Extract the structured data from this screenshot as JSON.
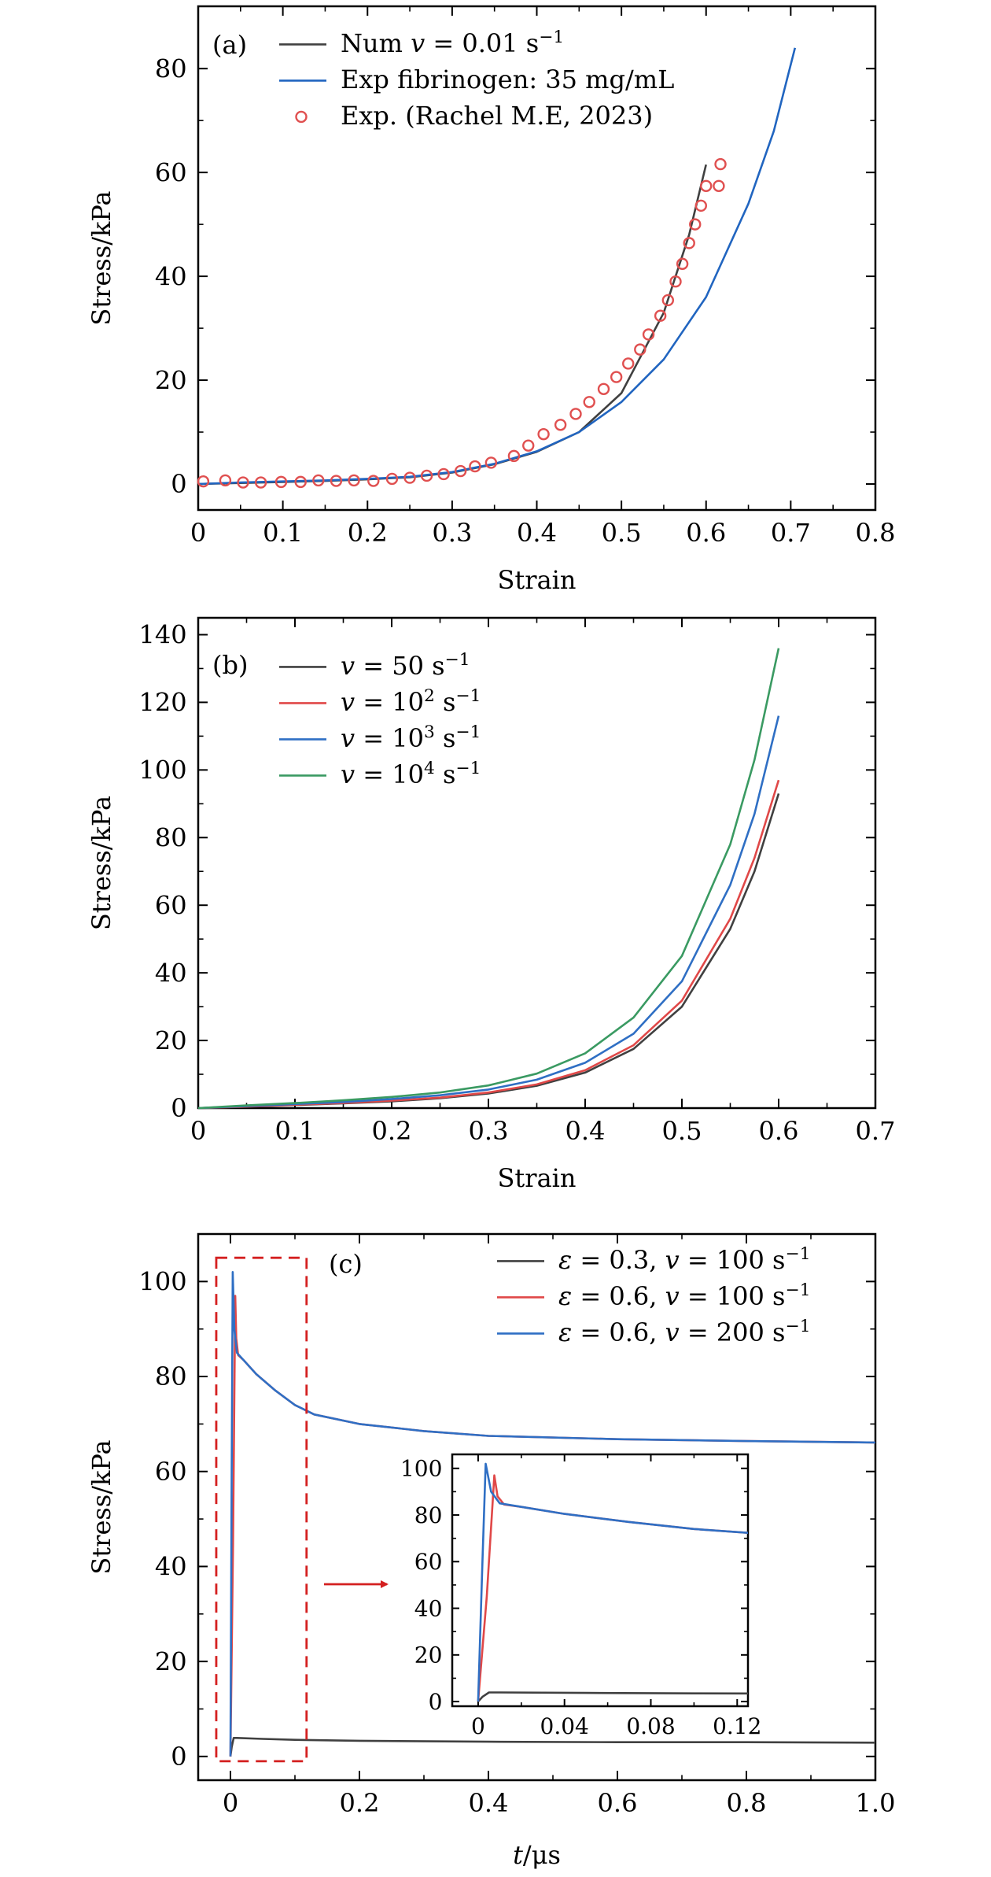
{
  "chart_data": [
    {
      "type": "line",
      "panel_label": "(a)",
      "xlabel": "Strain",
      "ylabel": "Stress/kPa",
      "xlim": [
        0,
        0.8
      ],
      "ylim": [
        -5,
        92
      ],
      "xticks": [
        0,
        0.1,
        0.2,
        0.3,
        0.4,
        0.5,
        0.6,
        0.7,
        0.8
      ],
      "xtick_labels": [
        "0",
        "0.1",
        "0.2",
        "0.3",
        "0.4",
        "0.5",
        "0.6",
        "0.7",
        "0.8"
      ],
      "yticks": [
        0,
        20,
        40,
        60,
        80
      ],
      "ytick_labels": [
        "0",
        "20",
        "40",
        "60",
        "80"
      ],
      "legend_position": "top-left",
      "series": [
        {
          "name": "Num v = 0.01 s⁻¹",
          "legend_main": "Num ",
          "legend_italic": "v",
          "legend_rest": " = 0.01 s",
          "legend_sup": "−1",
          "color": "#404040",
          "style": "line",
          "x": [
            0,
            0.05,
            0.1,
            0.15,
            0.2,
            0.25,
            0.3,
            0.35,
            0.4,
            0.45,
            0.5,
            0.55,
            0.58,
            0.6
          ],
          "values": [
            0,
            0.2,
            0.4,
            0.6,
            0.9,
            1.3,
            2.2,
            3.8,
            6.2,
            10.0,
            17.5,
            33.0,
            48.0,
            61.5
          ]
        },
        {
          "name": "Exp fibrinogen: 35 mg/mL",
          "legend_main": "Exp fibrinogen: 35 mg/mL",
          "color": "#2165c0",
          "style": "line",
          "x": [
            0,
            0.05,
            0.1,
            0.15,
            0.2,
            0.25,
            0.3,
            0.35,
            0.4,
            0.45,
            0.5,
            0.55,
            0.6,
            0.65,
            0.68,
            0.705
          ],
          "values": [
            0,
            0.3,
            0.5,
            0.7,
            1.0,
            1.4,
            2.3,
            3.9,
            6.3,
            10.0,
            15.8,
            24.0,
            36.0,
            54.0,
            68.0,
            84.0
          ]
        },
        {
          "name": "Exp. (Rachel M.E, 2023)",
          "legend_main": "Exp. (Rachel M.E, 2023)",
          "color": "#e05050",
          "style": "marker",
          "x": [
            0.006,
            0.032,
            0.053,
            0.074,
            0.098,
            0.121,
            0.142,
            0.163,
            0.184,
            0.207,
            0.229,
            0.25,
            0.27,
            0.29,
            0.31,
            0.327,
            0.346,
            0.373,
            0.39,
            0.408,
            0.428,
            0.446,
            0.462,
            0.479,
            0.494,
            0.508,
            0.522,
            0.532,
            0.546,
            0.555,
            0.564,
            0.572,
            0.58,
            0.587,
            0.594,
            0.6,
            0.615,
            0.617
          ],
          "values": [
            0.5,
            0.7,
            0.3,
            0.3,
            0.4,
            0.4,
            0.7,
            0.6,
            0.7,
            0.6,
            1.0,
            1.2,
            1.6,
            1.9,
            2.5,
            3.4,
            4.1,
            5.4,
            7.4,
            9.6,
            11.4,
            13.5,
            15.8,
            18.3,
            20.6,
            23.2,
            25.9,
            28.8,
            32.4,
            35.4,
            39.0,
            42.4,
            46.4,
            50.0,
            53.6,
            57.4,
            57.4,
            61.6
          ]
        }
      ]
    },
    {
      "type": "line",
      "panel_label": "(b)",
      "xlabel": "Strain",
      "ylabel": "Stress/kPa",
      "xlim": [
        0,
        0.7
      ],
      "ylim": [
        0,
        145
      ],
      "xticks": [
        0,
        0.1,
        0.2,
        0.3,
        0.4,
        0.5,
        0.6,
        0.7
      ],
      "xtick_labels": [
        "0",
        "0.1",
        "0.2",
        "0.3",
        "0.4",
        "0.5",
        "0.6",
        "0.7"
      ],
      "yticks": [
        0,
        20,
        40,
        60,
        80,
        100,
        120,
        140
      ],
      "ytick_labels": [
        "0",
        "20",
        "40",
        "60",
        "80",
        "100",
        "120",
        "140"
      ],
      "legend_position": "top-left",
      "series": [
        {
          "name": "v = 50 s⁻¹",
          "legend_italic": "v",
          "legend_rest": " =  50 s",
          "legend_sup": "−1",
          "color": "#404040",
          "style": "line",
          "x": [
            0,
            0.05,
            0.1,
            0.15,
            0.2,
            0.25,
            0.3,
            0.35,
            0.4,
            0.45,
            0.5,
            0.55,
            0.575,
            0.6
          ],
          "values": [
            0,
            0.4,
            0.9,
            1.4,
            2.0,
            2.9,
            4.3,
            6.6,
            10.5,
            17.5,
            30.0,
            53.0,
            70.0,
            93.0
          ]
        },
        {
          "name": "v = 10² s⁻¹",
          "legend_italic": "v",
          "legend_rest": " =  10",
          "legend_sup_a": "2",
          "legend_tail": " s",
          "legend_sup": "−1",
          "color": "#e04848",
          "style": "line",
          "x": [
            0,
            0.05,
            0.1,
            0.15,
            0.2,
            0.25,
            0.3,
            0.35,
            0.4,
            0.45,
            0.5,
            0.55,
            0.575,
            0.6
          ],
          "values": [
            0,
            0.45,
            1.0,
            1.5,
            2.2,
            3.1,
            4.6,
            7.0,
            11.2,
            18.6,
            31.8,
            56.0,
            74.0,
            97.0
          ]
        },
        {
          "name": "v = 10³ s⁻¹",
          "legend_italic": "v",
          "legend_rest": " =  10",
          "legend_sup_a": "3",
          "legend_tail": " s",
          "legend_sup": "−1",
          "color": "#2f6fc4",
          "style": "line",
          "x": [
            0,
            0.05,
            0.1,
            0.15,
            0.2,
            0.25,
            0.3,
            0.35,
            0.4,
            0.45,
            0.5,
            0.55,
            0.575,
            0.6
          ],
          "values": [
            0,
            0.6,
            1.2,
            1.8,
            2.7,
            3.8,
            5.5,
            8.4,
            13.4,
            22.0,
            37.5,
            66.0,
            87.0,
            116.0
          ]
        },
        {
          "name": "v = 10⁴ s⁻¹",
          "legend_italic": "v",
          "legend_rest": " =  10",
          "legend_sup_a": "4",
          "legend_tail": " s",
          "legend_sup": "−1",
          "color": "#3a9a62",
          "style": "line",
          "x": [
            0,
            0.05,
            0.1,
            0.15,
            0.2,
            0.25,
            0.3,
            0.35,
            0.4,
            0.45,
            0.5,
            0.55,
            0.575,
            0.6
          ],
          "values": [
            0,
            0.8,
            1.5,
            2.3,
            3.3,
            4.6,
            6.7,
            10.2,
            16.2,
            26.8,
            45.0,
            78.0,
            103.0,
            136.0
          ]
        }
      ]
    },
    {
      "type": "line",
      "panel_label": "(c)",
      "xlabel_italic": "t",
      "xlabel_rest": "/μs",
      "ylabel": "Stress/kPa",
      "xlim": [
        -0.05,
        1.0
      ],
      "ylim": [
        -5,
        110
      ],
      "xticks": [
        0,
        0.2,
        0.4,
        0.6,
        0.8,
        1.0
      ],
      "xtick_labels": [
        "0",
        "0.2",
        "0.4",
        "0.6",
        "0.8",
        "1.0"
      ],
      "yticks": [
        0,
        20,
        40,
        60,
        80,
        100
      ],
      "ytick_labels": [
        "0",
        "20",
        "40",
        "60",
        "80",
        "100"
      ],
      "legend_position": "top-right",
      "series": [
        {
          "name": "ε = 0.3, v = 100 s⁻¹",
          "legend_sym": "ε",
          "legend_mid": " = 0.3, ",
          "legend_italic": "v",
          "legend_rest": " = 100 s",
          "legend_sup": "−1",
          "color": "#404040",
          "style": "line",
          "x": [
            0,
            0.002,
            0.005,
            0.01,
            0.05,
            0.1,
            0.2,
            0.4,
            0.6,
            0.8,
            1.0
          ],
          "values": [
            0,
            2.0,
            3.9,
            3.9,
            3.7,
            3.5,
            3.3,
            3.1,
            3.0,
            3.0,
            2.9
          ]
        },
        {
          "name": "ε = 0.6, v = 100 s⁻¹",
          "legend_sym": "ε",
          "legend_mid": " = 0.6, ",
          "legend_italic": "v",
          "legend_rest": " = 100 s",
          "legend_sup": "−1",
          "color": "#e04848",
          "style": "line",
          "x": [
            0,
            0.004,
            0.0075,
            0.009,
            0.012,
            0.02,
            0.04,
            0.07,
            0.1,
            0.13,
            0.2,
            0.3,
            0.4,
            0.6,
            0.8,
            1.0
          ],
          "values": [
            0,
            45.0,
            97.0,
            88.0,
            84.5,
            83.5,
            80.5,
            77.0,
            74.0,
            72.0,
            70.0,
            68.5,
            67.5,
            66.8,
            66.4,
            66.1
          ]
        },
        {
          "name": "ε = 0.6, v = 200 s⁻¹",
          "legend_sym": "ε",
          "legend_mid": " = 0.6, ",
          "legend_italic": "v",
          "legend_rest": " = 200 s",
          "legend_sup": "−1",
          "color": "#2f6fc4",
          "style": "line",
          "x": [
            0,
            0.002,
            0.0035,
            0.006,
            0.01,
            0.02,
            0.04,
            0.07,
            0.1,
            0.13,
            0.2,
            0.3,
            0.4,
            0.6,
            0.8,
            1.0
          ],
          "values": [
            0,
            60.0,
            102.0,
            90.0,
            85.0,
            83.5,
            80.5,
            77.0,
            74.0,
            72.0,
            70.0,
            68.5,
            67.5,
            66.8,
            66.4,
            66.1
          ]
        }
      ],
      "inset": {
        "xlim": [
          -0.012,
          0.125
        ],
        "ylim": [
          -2,
          106
        ],
        "xticks": [
          0,
          0.04,
          0.08,
          0.12
        ],
        "xtick_labels": [
          "0",
          "0.04",
          "0.08",
          "0.12"
        ],
        "yticks": [
          0,
          20,
          40,
          60,
          80,
          100
        ],
        "ytick_labels": [
          "0",
          "20",
          "40",
          "60",
          "80",
          "100"
        ],
        "zoom_box_x": [
          -0.022,
          0.118
        ],
        "zoom_box_y": [
          -1,
          105
        ]
      }
    }
  ]
}
